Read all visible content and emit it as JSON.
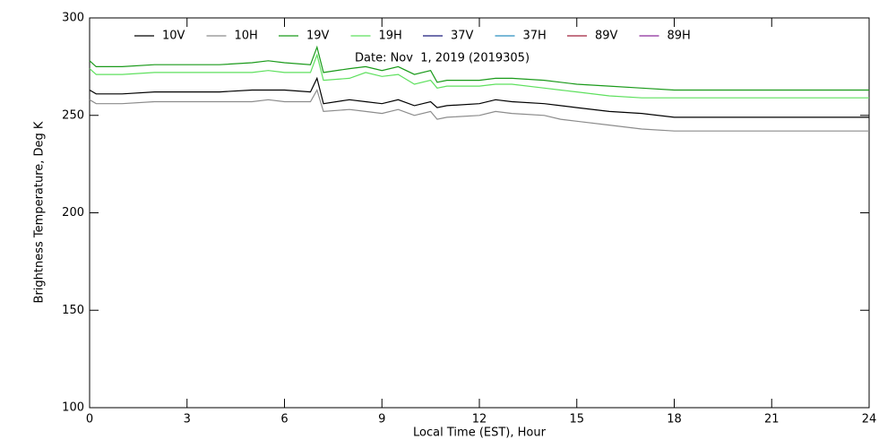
{
  "chart_data": {
    "type": "line",
    "xlabel": "Local Time (EST), Hour",
    "ylabel": "Brightness Temperature, Deg K",
    "annotation": "Date: Nov  1, 2019 (2019305)",
    "x": [
      0,
      0.2,
      1,
      2,
      3,
      4,
      5,
      5.5,
      6,
      6.8,
      7,
      7.2,
      8,
      8.5,
      9,
      9.5,
      10,
      10.5,
      10.7,
      11,
      12,
      12.5,
      13,
      14,
      14.5,
      15,
      16,
      17,
      18,
      19,
      20,
      21,
      22,
      23,
      24
    ],
    "series": [
      {
        "name": "10V",
        "color": "#000000",
        "values": [
          263,
          261,
          261,
          262,
          262,
          262,
          263,
          263,
          263,
          262,
          269,
          256,
          258,
          257,
          256,
          258,
          255,
          257,
          254,
          255,
          256,
          258,
          257,
          256,
          255,
          254,
          252,
          251,
          249,
          249,
          249,
          249,
          249,
          249,
          249
        ]
      },
      {
        "name": "10H",
        "color": "#8c8c8c",
        "values": [
          258,
          256,
          256,
          257,
          257,
          257,
          257,
          258,
          257,
          257,
          263,
          252,
          253,
          252,
          251,
          253,
          250,
          252,
          248,
          249,
          250,
          252,
          251,
          250,
          248,
          247,
          245,
          243,
          242,
          242,
          242,
          242,
          242,
          242,
          242
        ]
      },
      {
        "name": "19V",
        "color": "#1a9a1a",
        "values": [
          278,
          275,
          275,
          276,
          276,
          276,
          277,
          278,
          277,
          276,
          285,
          272,
          274,
          275,
          273,
          275,
          271,
          273,
          267,
          268,
          268,
          269,
          269,
          268,
          267,
          266,
          265,
          264,
          263,
          263,
          263,
          263,
          263,
          263,
          263
        ]
      },
      {
        "name": "19H",
        "color": "#5ee05e",
        "values": [
          274,
          271,
          271,
          272,
          272,
          272,
          272,
          273,
          272,
          272,
          281,
          268,
          269,
          272,
          270,
          271,
          266,
          268,
          264,
          265,
          265,
          266,
          266,
          264,
          263,
          262,
          260,
          259,
          259,
          259,
          259,
          259,
          259,
          259,
          259
        ]
      },
      {
        "name": "37V",
        "color": "#1c1c7c",
        "values": [
          null,
          null,
          null,
          null,
          null,
          null,
          null,
          null,
          null,
          null,
          null,
          null,
          null,
          null,
          null,
          null,
          null,
          null,
          null,
          null,
          null,
          null,
          null,
          null,
          null,
          null,
          null,
          null,
          null,
          null,
          null,
          null,
          null,
          null,
          null
        ]
      },
      {
        "name": "37H",
        "color": "#2a8fbf",
        "values": [
          null,
          null,
          null,
          null,
          null,
          null,
          null,
          null,
          null,
          null,
          null,
          null,
          null,
          null,
          null,
          null,
          null,
          null,
          null,
          null,
          null,
          null,
          null,
          null,
          null,
          null,
          null,
          null,
          null,
          null,
          null,
          null,
          null,
          null,
          null
        ]
      },
      {
        "name": "89V",
        "color": "#a0203c",
        "values": [
          null,
          null,
          null,
          null,
          null,
          null,
          null,
          null,
          null,
          null,
          null,
          null,
          null,
          null,
          null,
          null,
          null,
          null,
          null,
          null,
          null,
          null,
          null,
          null,
          null,
          null,
          null,
          null,
          null,
          null,
          null,
          null,
          null,
          null,
          null
        ]
      },
      {
        "name": "89H",
        "color": "#8b2a9b",
        "values": [
          null,
          null,
          null,
          null,
          null,
          null,
          null,
          null,
          null,
          null,
          null,
          null,
          null,
          null,
          null,
          null,
          null,
          null,
          null,
          null,
          null,
          null,
          null,
          null,
          null,
          null,
          null,
          null,
          null,
          null,
          null,
          null,
          null,
          null,
          null
        ]
      }
    ],
    "xlim": [
      0,
      24
    ],
    "xticks": [
      0,
      3,
      6,
      9,
      12,
      15,
      18,
      21,
      24
    ],
    "ylim": [
      100,
      300
    ],
    "yticks": [
      100,
      150,
      200,
      250,
      300
    ],
    "grid": false,
    "legend": "top"
  }
}
